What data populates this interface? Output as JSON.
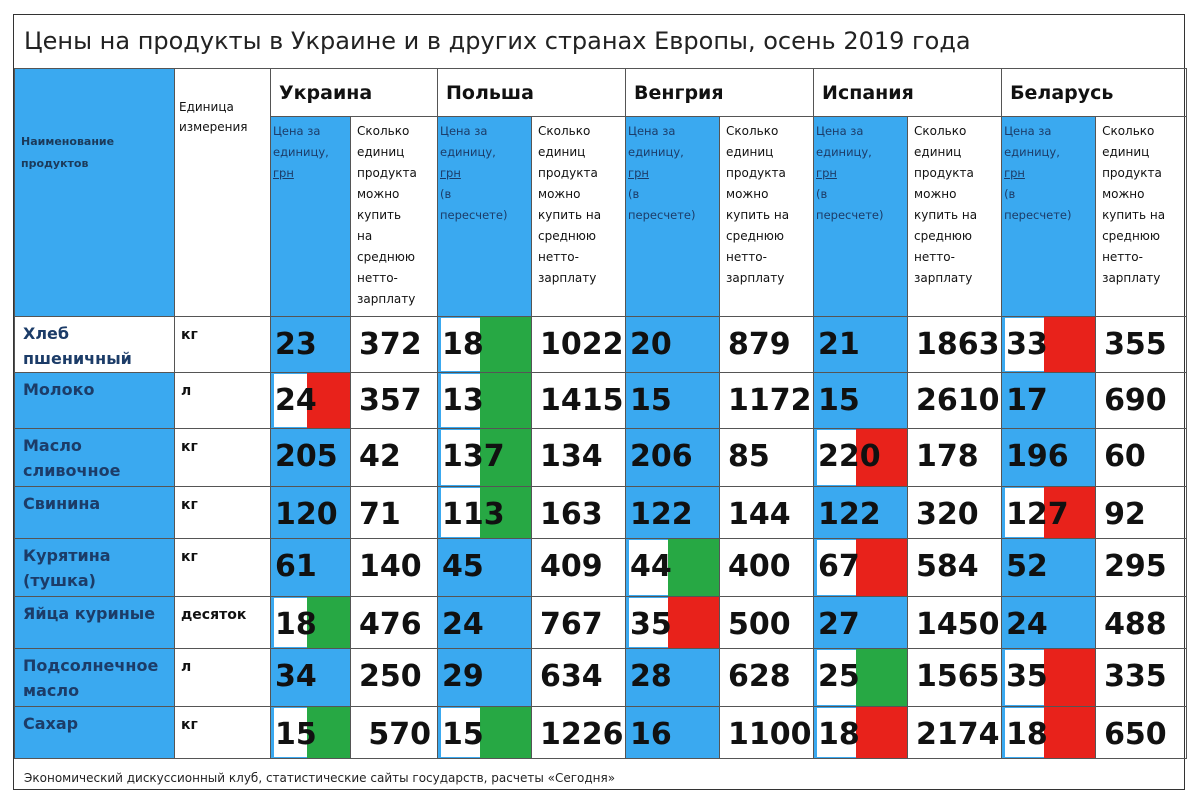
{
  "title": "Цены на продукты в Украине и в других странах Европы, осень 2019 года",
  "header": {
    "name_label": "Наименование продуктов",
    "unit_label": "Единица измерения",
    "countries": [
      "Украина",
      "Польша",
      "Венгрия",
      "Испания",
      "Беларусь"
    ],
    "price_label_ua": [
      "Цена за",
      "единицу,",
      "грн"
    ],
    "price_label_other": [
      "Цена за",
      "единицу,",
      "грн",
      "(в",
      "пересчете)"
    ],
    "count_label": [
      "Сколько",
      "единиц",
      "продукта",
      "можно",
      "купить",
      "на",
      "среднюю",
      "нетто-",
      "зарплату"
    ],
    "count_label_other": [
      "Сколько",
      "единиц",
      "продукта",
      "можно",
      "купить на",
      "среднюю",
      "нетто-",
      "зарплату"
    ]
  },
  "colors": {
    "blue": "#3aa9f0",
    "green": "#27a844",
    "red": "#e8221b"
  },
  "rows": [
    {
      "name": "Хлеб пшеничный",
      "unit": "кг",
      "cells": [
        {
          "p": "23",
          "n": "372",
          "m": ""
        },
        {
          "p": "18",
          "n": "1022",
          "m": "green"
        },
        {
          "p": "20",
          "n": "879",
          "m": ""
        },
        {
          "p": "21",
          "n": "1863",
          "m": ""
        },
        {
          "p": "33",
          "n": "355",
          "m": "red"
        }
      ]
    },
    {
      "name": "Молоко",
      "unit": "л",
      "cells": [
        {
          "p": "24",
          "n": "357",
          "m": "red"
        },
        {
          "p": "13",
          "n": "1415",
          "m": "green"
        },
        {
          "p": "15",
          "n": "1172",
          "m": ""
        },
        {
          "p": "15",
          "n": "2610",
          "m": ""
        },
        {
          "p": "17",
          "n": "690",
          "m": ""
        }
      ]
    },
    {
      "name": "Масло сливочное",
      "unit": "кг",
      "cells": [
        {
          "p": "205",
          "n": "42",
          "m": ""
        },
        {
          "p": "137",
          "n": "134",
          "m": "green"
        },
        {
          "p": "206",
          "n": "85",
          "m": ""
        },
        {
          "p": "220",
          "n": "178",
          "m": "red"
        },
        {
          "p": "196",
          "n": "60",
          "m": ""
        }
      ]
    },
    {
      "name": "Свинина",
      "unit": "кг",
      "cells": [
        {
          "p": "120",
          "n": "71",
          "m": ""
        },
        {
          "p": "113",
          "n": "163",
          "m": "green"
        },
        {
          "p": "122",
          "n": "144",
          "m": ""
        },
        {
          "p": "122",
          "n": "320",
          "m": ""
        },
        {
          "p": "127",
          "n": "92",
          "m": "red"
        }
      ]
    },
    {
      "name": "Курятина (тушка)",
      "unit": "кг",
      "cells": [
        {
          "p": "61",
          "n": "140",
          "m": ""
        },
        {
          "p": "45",
          "n": "409",
          "m": ""
        },
        {
          "p": "44",
          "n": "400",
          "m": "green"
        },
        {
          "p": "67",
          "n": "584",
          "m": "red"
        },
        {
          "p": "52",
          "n": "295",
          "m": ""
        }
      ]
    },
    {
      "name": "Яйца куриные",
      "unit": "десяток",
      "cells": [
        {
          "p": "18",
          "n": "476",
          "m": "green"
        },
        {
          "p": "24",
          "n": "767",
          "m": ""
        },
        {
          "p": "35",
          "n": "500",
          "m": "red"
        },
        {
          "p": "27",
          "n": "1450",
          "m": ""
        },
        {
          "p": "24",
          "n": "488",
          "m": ""
        }
      ]
    },
    {
      "name": "Подсолнечное масло",
      "unit": "л",
      "cells": [
        {
          "p": "34",
          "n": "250",
          "m": ""
        },
        {
          "p": "29",
          "n": "634",
          "m": ""
        },
        {
          "p": "28",
          "n": "628",
          "m": ""
        },
        {
          "p": "25",
          "n": "1565",
          "m": "green"
        },
        {
          "p": "35",
          "n": "335",
          "m": "red"
        }
      ]
    },
    {
      "name": "Сахар",
      "unit": "кг",
      "cells": [
        {
          "p": "15",
          "n": "570",
          "m": "green"
        },
        {
          "p": "15",
          "n": "1226",
          "m": "green"
        },
        {
          "p": "16",
          "n": "1100",
          "m": ""
        },
        {
          "p": "18",
          "n": "2174",
          "m": "red"
        },
        {
          "p": "18",
          "n": "650",
          "m": "red"
        }
      ]
    }
  ],
  "footer": "Экономический дискуссионный клуб, статистические сайты государств, расчеты «Сегодня»"
}
